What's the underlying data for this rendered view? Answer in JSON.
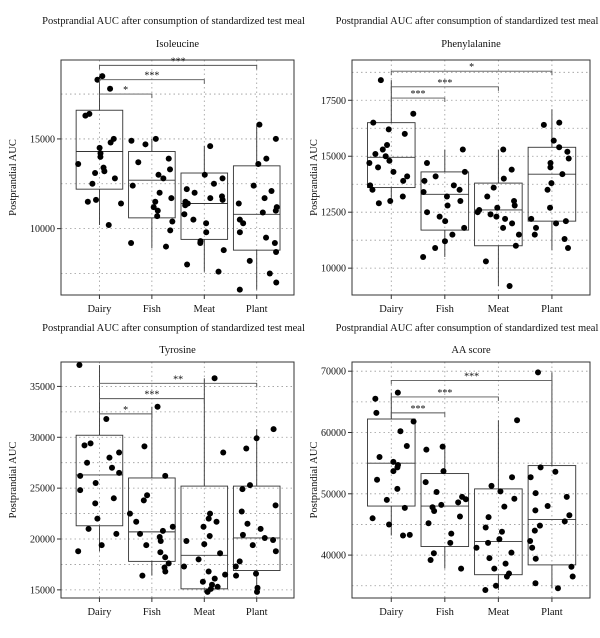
{
  "chart_data": [
    {
      "type": "box",
      "title": "Postprandial AUC after consumption of standardized test meal",
      "subtitle": "Isoleucine",
      "ylabel": "Postprandial AUC",
      "xlabel": "",
      "categories": [
        "Dairy",
        "Fish",
        "Meat",
        "Plant"
      ],
      "ylim": [
        6300,
        19400
      ],
      "yticks": [
        10000,
        15000
      ],
      "grid": true,
      "boxes": [
        {
          "q1": 12200,
          "median": 14300,
          "q3": 16600,
          "whisker_low": 10200,
          "whisker_high": 18500
        },
        {
          "q1": 10600,
          "median": 12700,
          "q3": 14300,
          "whisker_low": 8900,
          "whisker_high": 15000
        },
        {
          "q1": 9400,
          "median": 11400,
          "q3": 13100,
          "whisker_low": 7600,
          "whisker_high": 14600
        },
        {
          "q1": 8800,
          "median": 10800,
          "q3": 13500,
          "whisker_low": 6600,
          "whisker_high": 15800
        }
      ],
      "points": [
        [
          16300,
          17800,
          18500,
          18300,
          16400,
          15000,
          14800,
          14500,
          14200,
          14000,
          13600,
          13400,
          13200,
          13100,
          12800,
          12500,
          11600,
          11500,
          11400,
          10200
        ],
        [
          15000,
          14900,
          14700,
          13900,
          13700,
          13300,
          13000,
          12800,
          12400,
          12000,
          11700,
          11500,
          11200,
          11000,
          10700,
          10400,
          9900,
          9200,
          9000
        ],
        [
          14600,
          13000,
          12800,
          12500,
          12200,
          12000,
          11800,
          11700,
          11600,
          11500,
          11400,
          11300,
          10800,
          10500,
          10300,
          9800,
          9300,
          9200,
          8800,
          8000,
          7600
        ],
        [
          15800,
          15000,
          13900,
          13600,
          12400,
          12100,
          11700,
          11400,
          11200,
          11000,
          10900,
          10500,
          10300,
          9800,
          9500,
          9200,
          8700,
          8200,
          7500,
          7000,
          6600
        ]
      ],
      "significance": [
        {
          "from": "Dairy",
          "to": "Fish",
          "label": "*",
          "y": 17500
        },
        {
          "from": "Dairy",
          "to": "Meat",
          "label": "***",
          "y": 18300
        },
        {
          "from": "Dairy",
          "to": "Plant",
          "label": "***",
          "y": 19100
        }
      ]
    },
    {
      "type": "box",
      "title": "Postprandial AUC after consumption of standardized test meal",
      "subtitle": "Phenylalanine",
      "ylabel": "Postprandial AUC",
      "xlabel": "",
      "categories": [
        "Dairy",
        "Fish",
        "Meat",
        "Plant"
      ],
      "ylim": [
        8800,
        19300
      ],
      "yticks": [
        10000,
        12500,
        15000,
        17500
      ],
      "grid": true,
      "boxes": [
        {
          "q1": 13600,
          "median": 14950,
          "q3": 16500,
          "whisker_low": 12900,
          "whisker_high": 18400
        },
        {
          "q1": 11700,
          "median": 13300,
          "q3": 14300,
          "whisker_low": 10500,
          "whisker_high": 15300
        },
        {
          "q1": 11000,
          "median": 12600,
          "q3": 13800,
          "whisker_low": 9200,
          "whisker_high": 15300
        },
        {
          "q1": 12100,
          "median": 14200,
          "q3": 15400,
          "whisker_low": 10800,
          "whisker_high": 17100
        }
      ],
      "points": [
        [
          18400,
          16900,
          16500,
          16200,
          16000,
          15500,
          15300,
          15100,
          15000,
          14800,
          14700,
          14500,
          14300,
          14100,
          13900,
          13700,
          13500,
          13200,
          13000,
          12900
        ],
        [
          15300,
          14700,
          14300,
          14100,
          13900,
          13700,
          13500,
          13400,
          13200,
          13000,
          12800,
          12500,
          12300,
          12100,
          11800,
          11500,
          11200,
          10900,
          10500
        ],
        [
          15300,
          14400,
          14000,
          13600,
          13200,
          13000,
          12800,
          12700,
          12600,
          12500,
          12400,
          12300,
          12200,
          12000,
          11800,
          11500,
          11000,
          10300,
          9200
        ],
        [
          16500,
          16400,
          15700,
          15400,
          15200,
          14900,
          14700,
          14500,
          14200,
          13800,
          13500,
          12700,
          12200,
          12100,
          12000,
          11800,
          11500,
          11300,
          10900
        ]
      ],
      "significance": [
        {
          "from": "Dairy",
          "to": "Fish",
          "label": "***",
          "y": 17600
        },
        {
          "from": "Dairy",
          "to": "Meat",
          "label": "***",
          "y": 18100
        },
        {
          "from": "Dairy",
          "to": "Plant",
          "label": "*",
          "y": 18800
        }
      ]
    },
    {
      "type": "box",
      "title": "Postprandial AUC after consumption of standardized test meal",
      "subtitle": "Tyrosine",
      "ylabel": "Postprandial AUC",
      "xlabel": "",
      "categories": [
        "Dairy",
        "Fish",
        "Meat",
        "Plant"
      ],
      "ylim": [
        14200,
        37400
      ],
      "yticks": [
        15000,
        20000,
        25000,
        30000,
        35000
      ],
      "grid": true,
      "boxes": [
        {
          "q1": 21300,
          "median": 26300,
          "q3": 30200,
          "whisker_low": 18800,
          "whisker_high": 37100
        },
        {
          "q1": 17800,
          "median": 20700,
          "q3": 26000,
          "whisker_low": 16400,
          "whisker_high": 33000
        },
        {
          "q1": 15100,
          "median": 18400,
          "q3": 25200,
          "whisker_low": 14800,
          "whisker_high": 35800
        },
        {
          "q1": 16900,
          "median": 20100,
          "q3": 25200,
          "whisker_low": 14800,
          "whisker_high": 30800
        }
      ],
      "points": [
        [
          37100,
          31800,
          29400,
          29200,
          28500,
          28000,
          27500,
          27000,
          26500,
          26200,
          25500,
          24800,
          24000,
          23500,
          22000,
          21000,
          20500,
          19400,
          18800
        ],
        [
          33000,
          29100,
          26200,
          24300,
          23800,
          22500,
          21700,
          21200,
          20800,
          20500,
          20200,
          19800,
          19400,
          18700,
          18200,
          17600,
          17200,
          16800,
          16400
        ],
        [
          35800,
          28500,
          22500,
          22000,
          21700,
          21200,
          20300,
          19800,
          19500,
          18600,
          18000,
          17300,
          16800,
          16500,
          16100,
          15800,
          15500,
          15300,
          15100,
          14800
        ],
        [
          30800,
          29900,
          28900,
          25300,
          24900,
          23300,
          22700,
          21500,
          21000,
          20400,
          20100,
          19900,
          19400,
          18800,
          17800,
          17300,
          16600,
          16400,
          15200,
          14800
        ]
      ],
      "significance": [
        {
          "from": "Dairy",
          "to": "Fish",
          "label": "*",
          "y": 32300
        },
        {
          "from": "Dairy",
          "to": "Meat",
          "label": "***",
          "y": 33800
        },
        {
          "from": "Dairy",
          "to": "Plant",
          "label": "**",
          "y": 35300
        }
      ]
    },
    {
      "type": "box",
      "title": "Postprandial AUC after consumption of standardized test meal",
      "subtitle": "AA score",
      "ylabel": "Postprandial AUC",
      "xlabel": "",
      "categories": [
        "Dairy",
        "Fish",
        "Meat",
        "Plant"
      ],
      "ylim": [
        33000,
        71500
      ],
      "yticks": [
        40000,
        50000,
        60000,
        70000
      ],
      "grid": true,
      "boxes": [
        {
          "q1": 48000,
          "median": 55000,
          "q3": 62200,
          "whisker_low": 43200,
          "whisker_high": 66500
        },
        {
          "q1": 41400,
          "median": 48000,
          "q3": 53300,
          "whisker_low": 37800,
          "whisker_high": 57700
        },
        {
          "q1": 36800,
          "median": 42200,
          "q3": 50800,
          "whisker_low": 34300,
          "whisker_high": 62000
        },
        {
          "q1": 38400,
          "median": 45800,
          "q3": 54600,
          "whisker_low": 34600,
          "whisker_high": 69800
        }
      ],
      "points": [
        [
          66500,
          65500,
          63200,
          61800,
          60200,
          57800,
          56000,
          55200,
          54700,
          54300,
          53700,
          52300,
          50800,
          49000,
          47700,
          46000,
          45000,
          43300,
          43200
        ],
        [
          57700,
          57200,
          53700,
          51900,
          50300,
          49500,
          49100,
          48600,
          48200,
          47800,
          47200,
          46300,
          45200,
          43500,
          42000,
          40300,
          39200,
          37800
        ],
        [
          62000,
          52700,
          51300,
          50400,
          49200,
          47900,
          46200,
          44500,
          43800,
          42600,
          42000,
          41200,
          40400,
          39500,
          38600,
          37800,
          37000,
          36500,
          35000,
          34300
        ],
        [
          69800,
          54300,
          53600,
          52700,
          50100,
          49500,
          48000,
          47300,
          46500,
          45500,
          44800,
          44000,
          42300,
          41200,
          39400,
          38100,
          36500,
          35400,
          34600
        ]
      ],
      "significance": [
        {
          "from": "Dairy",
          "to": "Fish",
          "label": "***",
          "y": 63200
        },
        {
          "from": "Dairy",
          "to": "Meat",
          "label": "***",
          "y": 65800
        },
        {
          "from": "Dairy",
          "to": "Plant",
          "label": "***",
          "y": 68500
        }
      ]
    }
  ]
}
